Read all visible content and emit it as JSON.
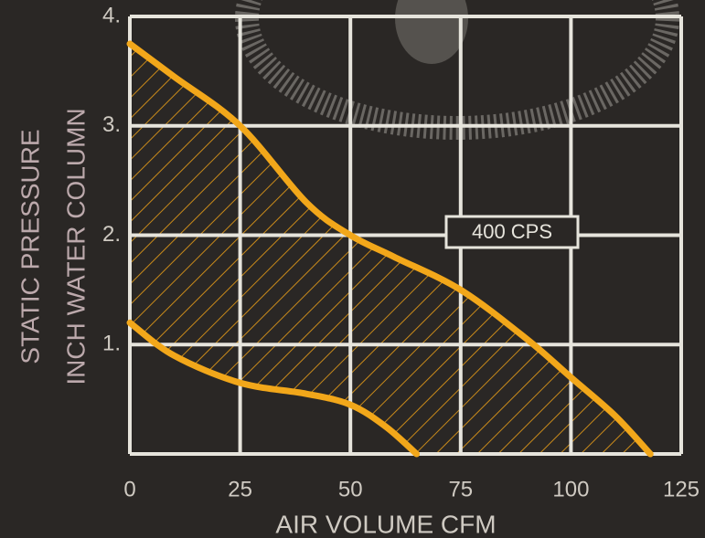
{
  "chart_data": {
    "type": "band",
    "xlabel": "AIR VOLUME CFM",
    "ylabel": [
      "STATIC PRESSURE",
      "INCH WATER COLUMN"
    ],
    "annotation": "400 CPS",
    "series": [
      {
        "color": "#f2a71a",
        "x": [
          0,
          10,
          25,
          40,
          50,
          60,
          75,
          90,
          100,
          110,
          118
        ],
        "values": [
          3.75,
          3.45,
          3.0,
          2.3,
          2.0,
          1.8,
          1.5,
          1.05,
          0.7,
          0.35,
          0
        ]
      },
      {
        "color": "#f2a71a",
        "x": [
          0,
          10,
          25,
          40,
          50,
          58,
          65
        ],
        "values": [
          1.2,
          0.9,
          0.65,
          0.55,
          0.45,
          0.25,
          0
        ]
      }
    ],
    "xlim": [
      0,
      125
    ],
    "ylim": [
      0,
      4
    ],
    "xticks": [
      0,
      25,
      50,
      75,
      100,
      125
    ],
    "yticks": [
      {
        "value": 1,
        "label": "1."
      },
      {
        "value": 2,
        "label": "2."
      },
      {
        "value": 3,
        "label": "3."
      },
      {
        "value": 4,
        "label": "4."
      }
    ],
    "grid": true
  }
}
